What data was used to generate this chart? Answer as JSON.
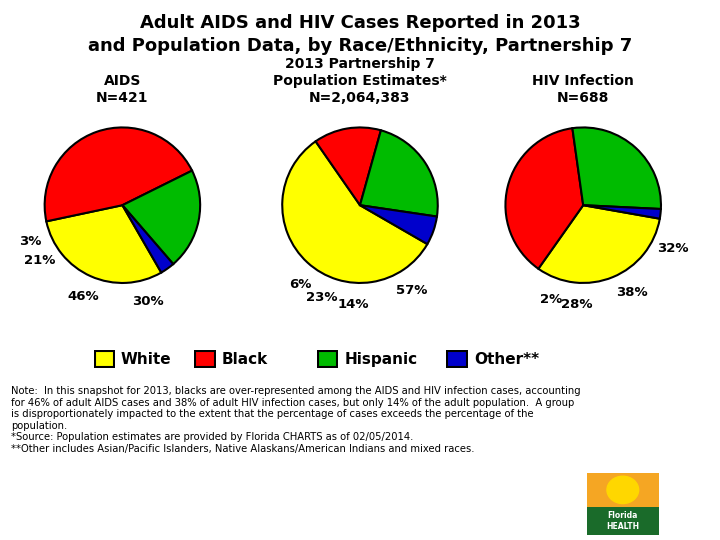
{
  "title": "Adult AIDS and HIV Cases Reported in 2013\nand Population Data, by Race/Ethnicity, Partnership 7",
  "title_color": "#000000",
  "title_fontsize": 13,
  "pie1_title": "AIDS\nN=421",
  "pie2_title": "2013 Partnership 7\nPopulation Estimates*\nN=2,064,383",
  "pie3_title": "HIV Infection\nN=688",
  "pie1_values": [
    30,
    46,
    21,
    3
  ],
  "pie2_values": [
    57,
    14,
    23,
    6
  ],
  "pie3_values": [
    32,
    38,
    28,
    2
  ],
  "pie_colors": [
    "#FFFF00",
    "#FF0000",
    "#00BB00",
    "#0000CC"
  ],
  "pie1_pct_labels": [
    "30%",
    "46%",
    "21%",
    "3%"
  ],
  "pie2_pct_labels": [
    "57%",
    "14%",
    "23%",
    "6%"
  ],
  "pie3_pct_labels": [
    "32%",
    "38%",
    "28%",
    "2%"
  ],
  "pie1_startangle": -60,
  "pie2_startangle": -30,
  "pie3_startangle": -10,
  "legend_labels": [
    "White",
    "Black",
    "Hispanic",
    "Other**"
  ],
  "legend_colors": [
    "#FFFF00",
    "#FF0000",
    "#00BB00",
    "#0000CC"
  ],
  "note_text": "Note:  In this snapshot for 2013, blacks are over-represented among the AIDS and HIV infection cases, accounting\nfor 46% of adult AIDS cases and 38% of adult HIV infection cases, but only 14% of the adult population.  A group\nis disproportionately impacted to the extent that the percentage of cases exceeds the percentage of the\npopulation.\n*Source: Population estimates are provided by Florida CHARTS as of 02/05/2014.\n**Other includes Asian/Pacific Islanders, Native Alaskans/American Indians and mixed races.",
  "background_color": "#FFFFFF",
  "subtitle_fontsize": 10,
  "pct_fontsize": 9.5,
  "note_fontsize": 7.2,
  "legend_fontsize": 11
}
